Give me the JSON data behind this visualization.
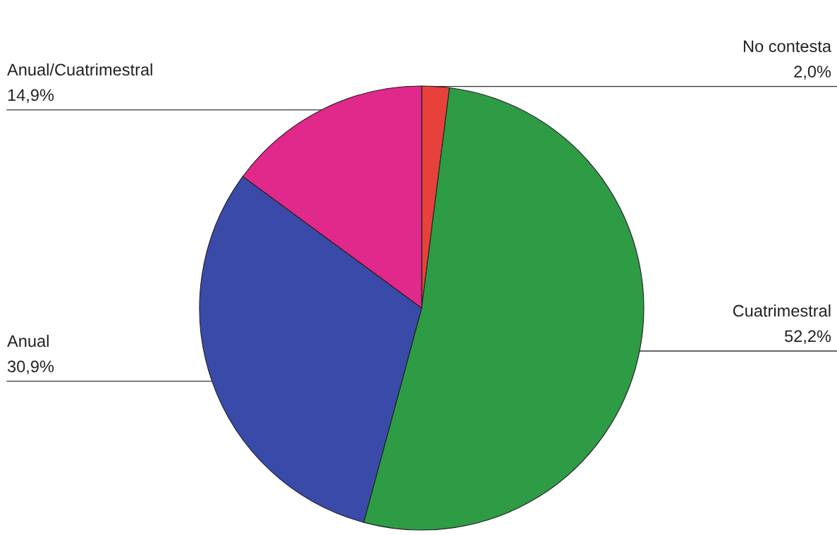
{
  "chart_data": {
    "type": "pie",
    "categories": [
      "No contesta",
      "Cuatrimestral",
      "Anual",
      "Anual/Cuatrimestral"
    ],
    "values": [
      2.0,
      52.2,
      30.9,
      14.9
    ],
    "value_labels": [
      "2,0%",
      "52,2%",
      "30,9%",
      "14,9%"
    ],
    "colors": [
      "#e8413c",
      "#2e9b45",
      "#3a4aa8",
      "#e0298a"
    ]
  }
}
